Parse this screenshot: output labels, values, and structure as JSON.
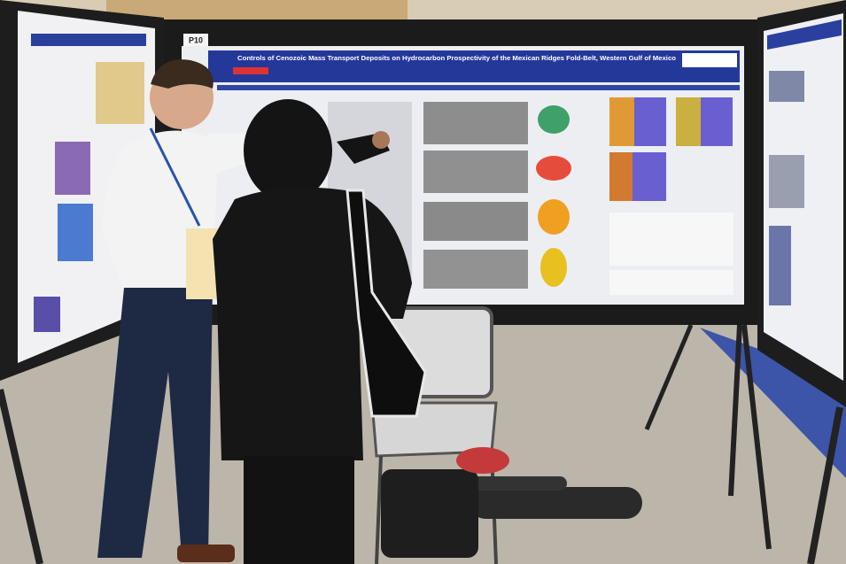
{
  "poster": {
    "board_number": "P10",
    "title": "Controls of Cenozoic Mass Transport Deposits on Hydrocarbon Prospectivity of the Mexican Ridges Fold-Belt, Western Gulf of Mexico"
  }
}
